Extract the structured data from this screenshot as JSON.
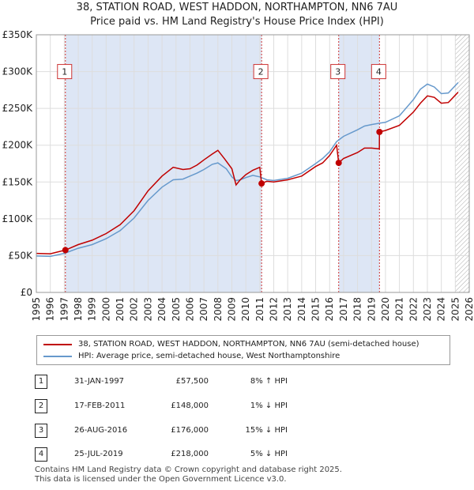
{
  "title": {
    "line1": "38, STATION ROAD, WEST HADDON, NORTHAMPTON, NN6 7AU",
    "line2": "Price paid vs. HM Land Registry's House Price Index (HPI)"
  },
  "chart_data": {
    "type": "line",
    "title": "38, STATION ROAD, WEST HADDON, NORTHAMPTON, NN6 7AU - Price paid vs. HM Land Registry's House Price Index (HPI)",
    "x_ticks": [
      "1995",
      "1996",
      "1997",
      "1998",
      "1999",
      "2000",
      "2001",
      "2002",
      "2003",
      "2004",
      "2005",
      "2006",
      "2007",
      "2008",
      "2009",
      "2010",
      "2011",
      "2012",
      "2013",
      "2014",
      "2015",
      "2016",
      "2017",
      "2018",
      "2019",
      "2020",
      "2021",
      "2022",
      "2023",
      "2024",
      "2025",
      "2026"
    ],
    "y_ticks": [
      "£0",
      "£50K",
      "£100K",
      "£150K",
      "£200K",
      "£250K",
      "£300K",
      "£350K"
    ],
    "xlim": [
      1995,
      2026
    ],
    "ylim": [
      0,
      350000
    ],
    "series": [
      {
        "name": "38, STATION ROAD, WEST HADDON, NORTHAMPTON, NN6 7AU (semi-detached house)",
        "color": "#c00000",
        "points": [
          [
            1995.0,
            53000
          ],
          [
            1996.0,
            52500
          ],
          [
            1997.08,
            57500
          ],
          [
            1998.0,
            65000
          ],
          [
            1999.0,
            71000
          ],
          [
            2000.0,
            80000
          ],
          [
            2001.0,
            92000
          ],
          [
            2002.0,
            111000
          ],
          [
            2003.0,
            138000
          ],
          [
            2004.0,
            158000
          ],
          [
            2004.8,
            170000
          ],
          [
            2005.5,
            167000
          ],
          [
            2006.0,
            168000
          ],
          [
            2006.5,
            173000
          ],
          [
            2007.0,
            180000
          ],
          [
            2007.6,
            188000
          ],
          [
            2008.0,
            193000
          ],
          [
            2008.5,
            181000
          ],
          [
            2009.0,
            168000
          ],
          [
            2009.3,
            146000
          ],
          [
            2009.6,
            153000
          ],
          [
            2010.0,
            160000
          ],
          [
            2010.5,
            166000
          ],
          [
            2011.0,
            170000
          ],
          [
            2011.13,
            148000
          ],
          [
            2011.5,
            151000
          ],
          [
            2012.0,
            150000
          ],
          [
            2013.0,
            153000
          ],
          [
            2014.0,
            158000
          ],
          [
            2015.0,
            171000
          ],
          [
            2015.5,
            176000
          ],
          [
            2016.0,
            186000
          ],
          [
            2016.5,
            200000
          ],
          [
            2016.65,
            176000
          ],
          [
            2017.0,
            182000
          ],
          [
            2018.0,
            190000
          ],
          [
            2018.5,
            196000
          ],
          [
            2019.0,
            196000
          ],
          [
            2019.56,
            195000
          ],
          [
            2019.57,
            218000
          ],
          [
            2020.0,
            220000
          ],
          [
            2021.0,
            227000
          ],
          [
            2022.0,
            245000
          ],
          [
            2022.5,
            257000
          ],
          [
            2023.0,
            267000
          ],
          [
            2023.5,
            265000
          ],
          [
            2024.0,
            257000
          ],
          [
            2024.5,
            258000
          ],
          [
            2025.2,
            272000
          ]
        ]
      },
      {
        "name": "HPI: Average price, semi-detached house, West Northamptonshire",
        "color": "#6699cc",
        "points": [
          [
            1995.0,
            49500
          ],
          [
            1996.0,
            49000
          ],
          [
            1997.0,
            53000
          ],
          [
            1998.0,
            60000
          ],
          [
            1999.0,
            65000
          ],
          [
            2000.0,
            73000
          ],
          [
            2001.0,
            84000
          ],
          [
            2002.0,
            101000
          ],
          [
            2003.0,
            125000
          ],
          [
            2004.0,
            143000
          ],
          [
            2004.8,
            153000
          ],
          [
            2005.5,
            154000
          ],
          [
            2006.0,
            158000
          ],
          [
            2006.5,
            162000
          ],
          [
            2007.0,
            167000
          ],
          [
            2007.6,
            174000
          ],
          [
            2008.0,
            176000
          ],
          [
            2008.6,
            168000
          ],
          [
            2009.0,
            157000
          ],
          [
            2009.3,
            152000
          ],
          [
            2009.6,
            153000
          ],
          [
            2010.0,
            156000
          ],
          [
            2010.5,
            159000
          ],
          [
            2011.0,
            157000
          ],
          [
            2011.5,
            153000
          ],
          [
            2012.0,
            152000
          ],
          [
            2013.0,
            155000
          ],
          [
            2014.0,
            162000
          ],
          [
            2015.0,
            175000
          ],
          [
            2015.5,
            182000
          ],
          [
            2016.0,
            191000
          ],
          [
            2016.5,
            205000
          ],
          [
            2017.0,
            212000
          ],
          [
            2018.0,
            221000
          ],
          [
            2018.5,
            226000
          ],
          [
            2019.0,
            228000
          ],
          [
            2019.6,
            230000
          ],
          [
            2020.0,
            231000
          ],
          [
            2021.0,
            240000
          ],
          [
            2022.0,
            262000
          ],
          [
            2022.5,
            276000
          ],
          [
            2023.0,
            283000
          ],
          [
            2023.5,
            279000
          ],
          [
            2024.0,
            270000
          ],
          [
            2024.5,
            271000
          ],
          [
            2025.2,
            285000
          ]
        ]
      }
    ],
    "transactions": [
      {
        "label": "1",
        "x": 1997.08,
        "price": 57500
      },
      {
        "label": "2",
        "x": 2011.13,
        "price": 148000
      },
      {
        "label": "3",
        "x": 2016.65,
        "price": 176000
      },
      {
        "label": "4",
        "x": 2019.57,
        "price": 218000
      }
    ],
    "label_box_y": 300000,
    "hatch_start": 2025.0,
    "shade_color": "#dde6f5"
  },
  "legend": {
    "property": "38, STATION ROAD, WEST HADDON, NORTHAMPTON, NN6 7AU (semi-detached house)",
    "hpi": "HPI: Average price, semi-detached house, West Northamptonshire"
  },
  "transactions_table": [
    {
      "num": "1",
      "date": "31-JAN-1997",
      "price": "£57,500",
      "hpi": "8% ↑ HPI"
    },
    {
      "num": "2",
      "date": "17-FEB-2011",
      "price": "£148,000",
      "hpi": "1% ↓ HPI"
    },
    {
      "num": "3",
      "date": "26-AUG-2016",
      "price": "£176,000",
      "hpi": "15% ↓ HPI"
    },
    {
      "num": "4",
      "date": "25-JUL-2019",
      "price": "£218,000",
      "hpi": "5% ↓ HPI"
    }
  ],
  "footer": {
    "line1": "Contains HM Land Registry data © Crown copyright and database right 2025.",
    "line2": "This data is licensed under the Open Government Licence v3.0."
  }
}
